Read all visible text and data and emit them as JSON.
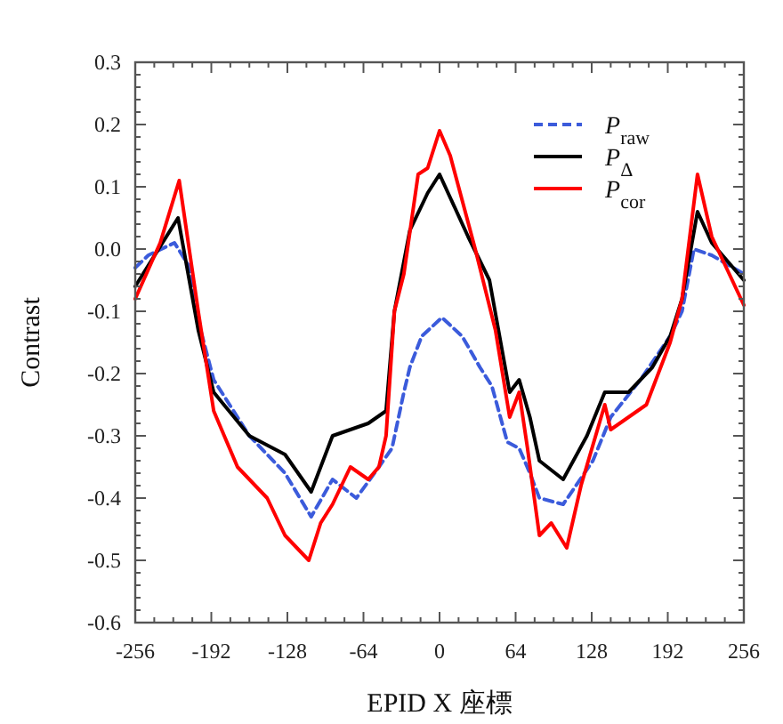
{
  "chart_data": {
    "type": "line",
    "xlabel": "EPID X 座標",
    "ylabel": "Contrast",
    "xlim": [
      -256,
      256
    ],
    "ylim": [
      -0.6,
      0.3
    ],
    "xticks": [
      -256,
      {
        "value": -240,
        "label": null
      },
      {
        "value": -224,
        "label": null
      },
      {
        "value": -208,
        "label": null
      },
      -192,
      {
        "value": -176,
        "label": null
      },
      {
        "value": -160,
        "label": null
      },
      {
        "value": -144,
        "label": null
      },
      -128,
      {
        "value": -112,
        "label": null
      },
      {
        "value": -96,
        "label": null
      },
      {
        "value": -80,
        "label": null
      },
      -64,
      {
        "value": -48,
        "label": null
      },
      {
        "value": -32,
        "label": null
      },
      {
        "value": -16,
        "label": null
      },
      0,
      {
        "value": 16,
        "label": null
      },
      {
        "value": 32,
        "label": null
      },
      {
        "value": 48,
        "label": null
      },
      64,
      {
        "value": 80,
        "label": null
      },
      {
        "value": 96,
        "label": null
      },
      {
        "value": 112,
        "label": null
      },
      128,
      {
        "value": 144,
        "label": null
      },
      {
        "value": 160,
        "label": null
      },
      {
        "value": 176,
        "label": null
      },
      192,
      {
        "value": 208,
        "label": null
      },
      {
        "value": 224,
        "label": null
      },
      {
        "value": 240,
        "label": null
      },
      256
    ],
    "yticks": [
      -0.6,
      {
        "value": -0.58,
        "label": null
      },
      {
        "value": -0.56,
        "label": null
      },
      {
        "value": -0.54,
        "label": null
      },
      {
        "value": -0.52,
        "label": null
      },
      -0.5,
      {
        "value": -0.48,
        "label": null
      },
      {
        "value": -0.46,
        "label": null
      },
      {
        "value": -0.44,
        "label": null
      },
      {
        "value": -0.42,
        "label": null
      },
      -0.4,
      {
        "value": -0.38,
        "label": null
      },
      {
        "value": -0.36,
        "label": null
      },
      {
        "value": -0.34,
        "label": null
      },
      {
        "value": -0.32,
        "label": null
      },
      -0.3,
      {
        "value": -0.28,
        "label": null
      },
      {
        "value": -0.26,
        "label": null
      },
      {
        "value": -0.24,
        "label": null
      },
      {
        "value": -0.22,
        "label": null
      },
      -0.2,
      {
        "value": -0.18,
        "label": null
      },
      {
        "value": -0.16,
        "label": null
      },
      {
        "value": -0.14,
        "label": null
      },
      {
        "value": -0.12,
        "label": null
      },
      -0.1,
      {
        "value": -0.08,
        "label": null
      },
      {
        "value": -0.06,
        "label": null
      },
      {
        "value": -0.04,
        "label": null
      },
      {
        "value": -0.02,
        "label": null
      },
      {
        "value": 0,
        "label": "0.0"
      },
      {
        "value": 0.02,
        "label": null
      },
      {
        "value": 0.04,
        "label": null
      },
      {
        "value": 0.06,
        "label": null
      },
      {
        "value": 0.08,
        "label": null
      },
      0.1,
      {
        "value": 0.12,
        "label": null
      },
      {
        "value": 0.14,
        "label": null
      },
      {
        "value": 0.16,
        "label": null
      },
      {
        "value": 0.18,
        "label": null
      },
      0.2,
      {
        "value": 0.22,
        "label": null
      },
      {
        "value": 0.24,
        "label": null
      },
      {
        "value": 0.26,
        "label": null
      },
      {
        "value": 0.28,
        "label": null
      },
      0.3
    ],
    "grid": false,
    "legend": "top right",
    "series": [
      {
        "name": "P$_{raw}$",
        "color": "#3b5bdb",
        "line_style": "dashed",
        "x": [
          -256,
          -245,
          -223,
          -210,
          -201,
          -190,
          -160,
          -130,
          -108,
          -90,
          -70,
          -51,
          -40,
          -30,
          -25,
          -15,
          2,
          19,
          34,
          44,
          57,
          67,
          76,
          84,
          104,
          129,
          144,
          169,
          194,
          204,
          214,
          229,
          256
        ],
        "values": [
          -0.03,
          -0.01,
          0.01,
          -0.03,
          -0.13,
          -0.21,
          -0.3,
          -0.36,
          -0.43,
          -0.37,
          -0.4,
          -0.35,
          -0.32,
          -0.23,
          -0.19,
          -0.14,
          -0.11,
          -0.14,
          -0.19,
          -0.22,
          -0.31,
          -0.32,
          -0.36,
          -0.4,
          -0.41,
          -0.34,
          -0.27,
          -0.21,
          -0.14,
          -0.1,
          0.0,
          -0.01,
          -0.04
        ]
      },
      {
        "name": "P$_{Δ}$",
        "color": "#000000",
        "line_style": "solid",
        "x": [
          -256,
          -220,
          -203,
          -190,
          -160,
          -130,
          -108,
          -90,
          -60,
          -45,
          -38,
          -25,
          -10,
          0,
          24,
          42,
          59,
          67,
          76,
          84,
          104,
          124,
          139,
          159,
          179,
          194,
          204,
          217,
          229,
          256
        ],
        "values": [
          -0.06,
          0.05,
          -0.13,
          -0.23,
          -0.3,
          -0.33,
          -0.39,
          -0.3,
          -0.28,
          -0.26,
          -0.1,
          0.03,
          0.09,
          0.12,
          0.02,
          -0.05,
          -0.23,
          -0.21,
          -0.27,
          -0.34,
          -0.37,
          -0.3,
          -0.23,
          -0.23,
          -0.19,
          -0.14,
          -0.08,
          0.06,
          0.01,
          -0.05
        ]
      },
      {
        "name": "P$_{cor}$",
        "color": "#ff0000",
        "line_style": "solid",
        "x": [
          -256,
          -235,
          -219,
          -203,
          -190,
          -170,
          -145,
          -130,
          -110,
          -100,
          -90,
          -75,
          -60,
          -51,
          -45,
          -38,
          -30,
          -18,
          -10,
          0,
          9,
          30,
          47,
          59,
          67,
          74,
          84,
          94,
          107,
          119,
          139,
          144,
          159,
          174,
          194,
          204,
          217,
          229,
          256
        ],
        "values": [
          -0.08,
          0.01,
          0.11,
          -0.1,
          -0.26,
          -0.35,
          -0.4,
          -0.46,
          -0.5,
          -0.44,
          -0.41,
          -0.35,
          -0.37,
          -0.35,
          -0.3,
          -0.1,
          -0.04,
          0.12,
          0.13,
          0.19,
          0.15,
          0.0,
          -0.13,
          -0.27,
          -0.23,
          -0.32,
          -0.46,
          -0.44,
          -0.48,
          -0.38,
          -0.25,
          -0.29,
          -0.27,
          -0.25,
          -0.15,
          -0.08,
          0.12,
          0.02,
          -0.09
        ]
      }
    ]
  }
}
